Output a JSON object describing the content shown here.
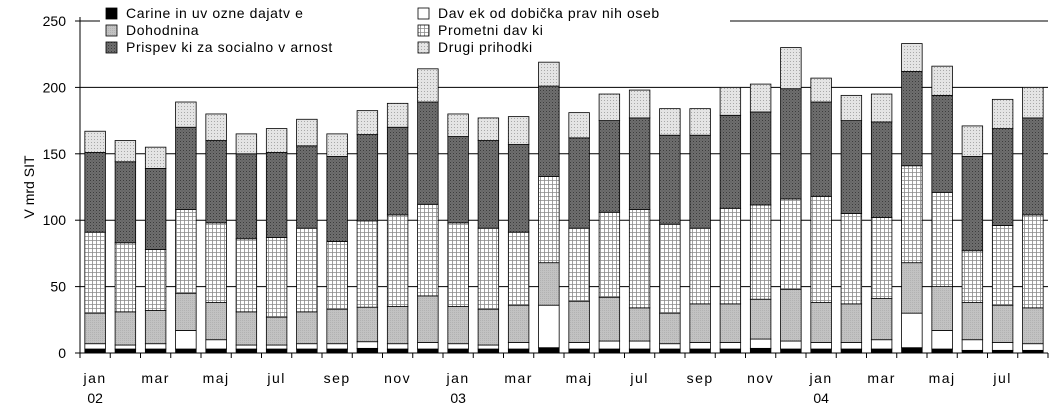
{
  "chart_data": {
    "type": "bar",
    "stacked": true,
    "ylabel": "V mrd SIT",
    "ylim": [
      0,
      250
    ],
    "yticks": [
      0,
      50,
      100,
      150,
      200,
      250
    ],
    "grid": true,
    "legend_position": "top",
    "x_tick_labels": [
      "jan",
      "mar",
      "maj",
      "jul",
      "sep",
      "nov",
      "jan",
      "mar",
      "maj",
      "jul",
      "sep",
      "nov",
      "jan",
      "mar",
      "maj",
      "jul"
    ],
    "x_tick_index": [
      0,
      2,
      4,
      6,
      8,
      10,
      12,
      14,
      16,
      18,
      20,
      22,
      24,
      26,
      28,
      30
    ],
    "year_labels": [
      "02",
      "03",
      "04"
    ],
    "year_label_index": [
      0,
      12,
      24
    ],
    "categories": [
      "jan 02",
      "feb 02",
      "mar 02",
      "apr 02",
      "maj 02",
      "jun 02",
      "jul 02",
      "avg 02",
      "sep 02",
      "okt 02",
      "nov 02",
      "dec 02",
      "jan 03",
      "feb 03",
      "mar 03",
      "apr 03",
      "maj 03",
      "jun 03",
      "jul 03",
      "avg 03",
      "sep 03",
      "okt 03",
      "nov 03",
      "dec 03",
      "jan 04",
      "feb 04",
      "mar 04",
      "apr 04",
      "maj 04",
      "jun 04",
      "jul 04",
      "avg 04"
    ],
    "series": [
      {
        "name": "Carine in uv ozne dajatv e",
        "pattern": "black",
        "values": [
          3,
          3,
          3,
          3,
          3,
          3,
          3,
          3,
          3,
          3.5,
          3,
          3,
          3,
          3,
          3,
          4,
          3,
          3,
          3,
          3,
          3,
          3,
          3.5,
          3,
          3,
          3,
          3,
          4,
          3,
          2,
          2,
          2
        ]
      },
      {
        "name": "Dav ek od dobička prav nih oseb",
        "pattern": "white",
        "values": [
          4,
          3,
          4,
          14,
          7,
          3,
          3,
          4,
          4,
          5,
          4,
          5,
          4,
          3,
          5,
          32,
          5,
          6,
          6,
          4,
          5,
          5,
          7,
          6,
          5,
          5,
          7,
          26,
          14,
          8,
          6,
          5
        ]
      },
      {
        "name": "Dohodnina",
        "pattern": "gray",
        "values": [
          23,
          25,
          25,
          28,
          28,
          25,
          21,
          24,
          26,
          26,
          28,
          35,
          28,
          27,
          28,
          32,
          31,
          33,
          25,
          23,
          29,
          29,
          30,
          39,
          30,
          29,
          31,
          38,
          33,
          28,
          28,
          27
        ]
      },
      {
        "name": "Prometni dav ki",
        "pattern": "grid",
        "values": [
          61,
          52,
          46,
          63,
          60,
          55,
          60,
          63,
          51,
          65,
          69,
          69,
          63,
          61,
          55,
          65,
          55,
          64,
          74,
          67,
          57,
          72,
          71,
          68,
          80,
          68,
          61,
          73,
          71,
          39,
          60,
          70
        ]
      },
      {
        "name": "Prispev ki za socialno v arnost",
        "pattern": "dark",
        "values": [
          60,
          61,
          61,
          62,
          62,
          64,
          64,
          62,
          64,
          65,
          66,
          77,
          65,
          66,
          66,
          68,
          68,
          69,
          69,
          67,
          70,
          70,
          70,
          83,
          71,
          70,
          72,
          71,
          73,
          71,
          73,
          73
        ]
      },
      {
        "name": "Drugi prihodki",
        "pattern": "dotted",
        "values": [
          16,
          16,
          16,
          19,
          20,
          15,
          18,
          20,
          17,
          18,
          18,
          25,
          17,
          17,
          21,
          18,
          19,
          20,
          21,
          20,
          20,
          21,
          21,
          31,
          18,
          19,
          21,
          21,
          22,
          23,
          22,
          23
        ]
      }
    ]
  }
}
